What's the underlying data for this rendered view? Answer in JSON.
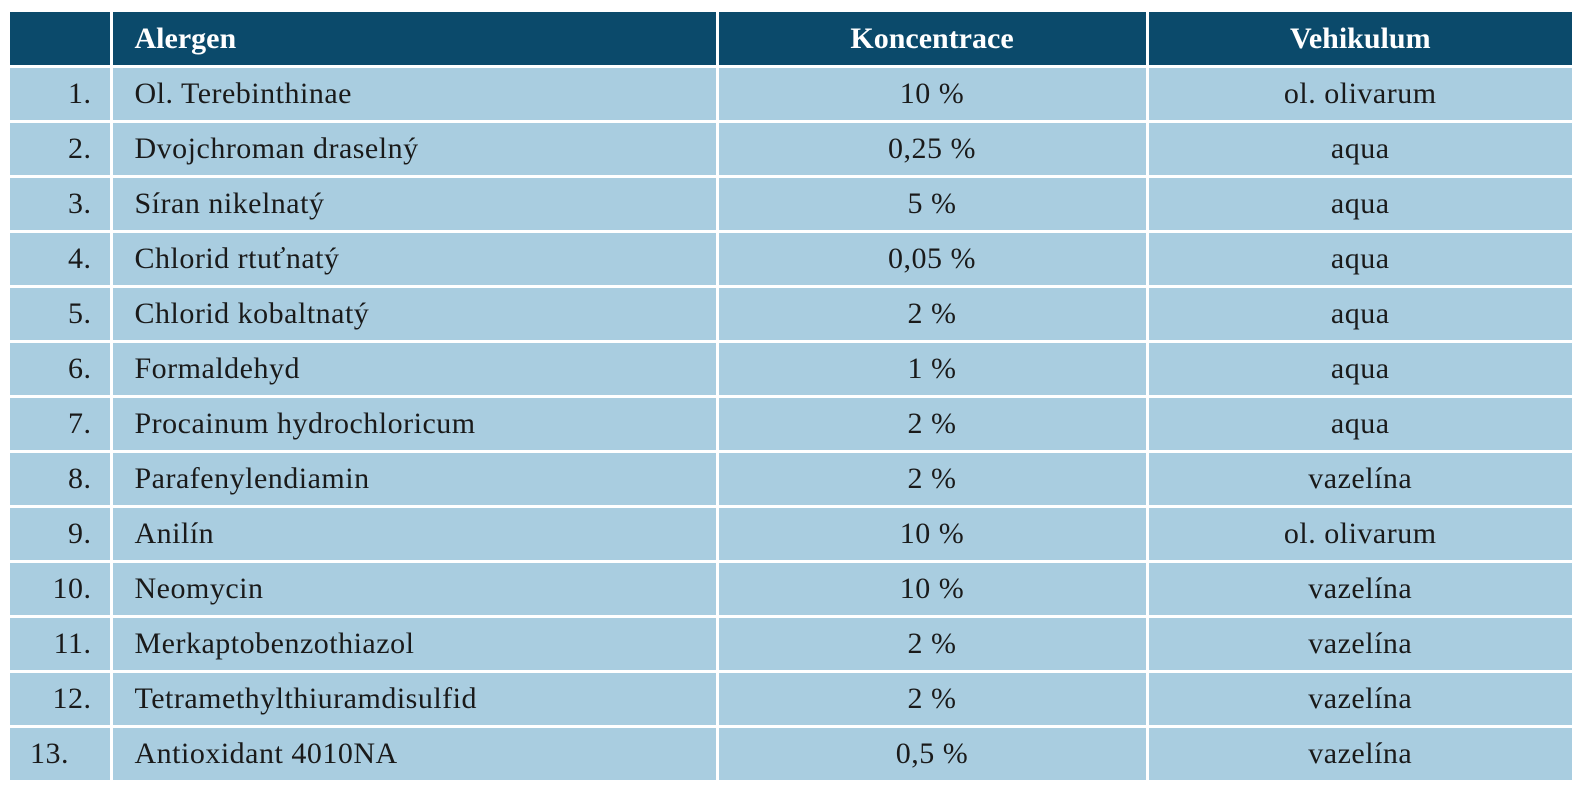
{
  "table": {
    "headers": {
      "number": "",
      "allergen": "Alergen",
      "concentration": "Koncentrace",
      "vehicle": "Vehikulum"
    },
    "rows": [
      {
        "number": "1.",
        "allergen": "Ol. Terebinthinae",
        "concentration": "10 %",
        "vehicle": "ol. olivarum"
      },
      {
        "number": "2.",
        "allergen": "Dvojchroman draselný",
        "concentration": "0,25 %",
        "vehicle": "aqua"
      },
      {
        "number": "3.",
        "allergen": "Síran nikelnatý",
        "concentration": "5 %",
        "vehicle": "aqua"
      },
      {
        "number": "4.",
        "allergen": "Chlorid rtuťnatý",
        "concentration": "0,05 %",
        "vehicle": "aqua"
      },
      {
        "number": "5.",
        "allergen": "Chlorid kobaltnatý",
        "concentration": "2 %",
        "vehicle": "aqua"
      },
      {
        "number": "6.",
        "allergen": "Formaldehyd",
        "concentration": "1 %",
        "vehicle": "aqua"
      },
      {
        "number": "7.",
        "allergen": "Procainum hydrochloricum",
        "concentration": "2 %",
        "vehicle": "aqua"
      },
      {
        "number": "8.",
        "allergen": "Parafenylendiamin",
        "concentration": "2 %",
        "vehicle": "vazelína"
      },
      {
        "number": "9.",
        "allergen": "Anilín",
        "concentration": "10 %",
        "vehicle": "ol. olivarum"
      },
      {
        "number": "10.",
        "allergen": "Neomycin",
        "concentration": "10 %",
        "vehicle": "vazelína"
      },
      {
        "number": "11.",
        "allergen": "Merkaptobenzothiazol",
        "concentration": "2 %",
        "vehicle": "vazelína"
      },
      {
        "number": "12.",
        "allergen": "Tetramethylthiuramdisulfid",
        "concentration": "2 %",
        "vehicle": "vazelína"
      },
      {
        "number": "13.",
        "allergen": "Antioxidant 4010NA",
        "concentration": "0,5 %",
        "vehicle": "vazelína"
      }
    ]
  },
  "colors": {
    "header_bg": "#0b4a6b",
    "row_bg": "#a9cde0",
    "border": "#ffffff",
    "text": "#1a1a1a"
  }
}
